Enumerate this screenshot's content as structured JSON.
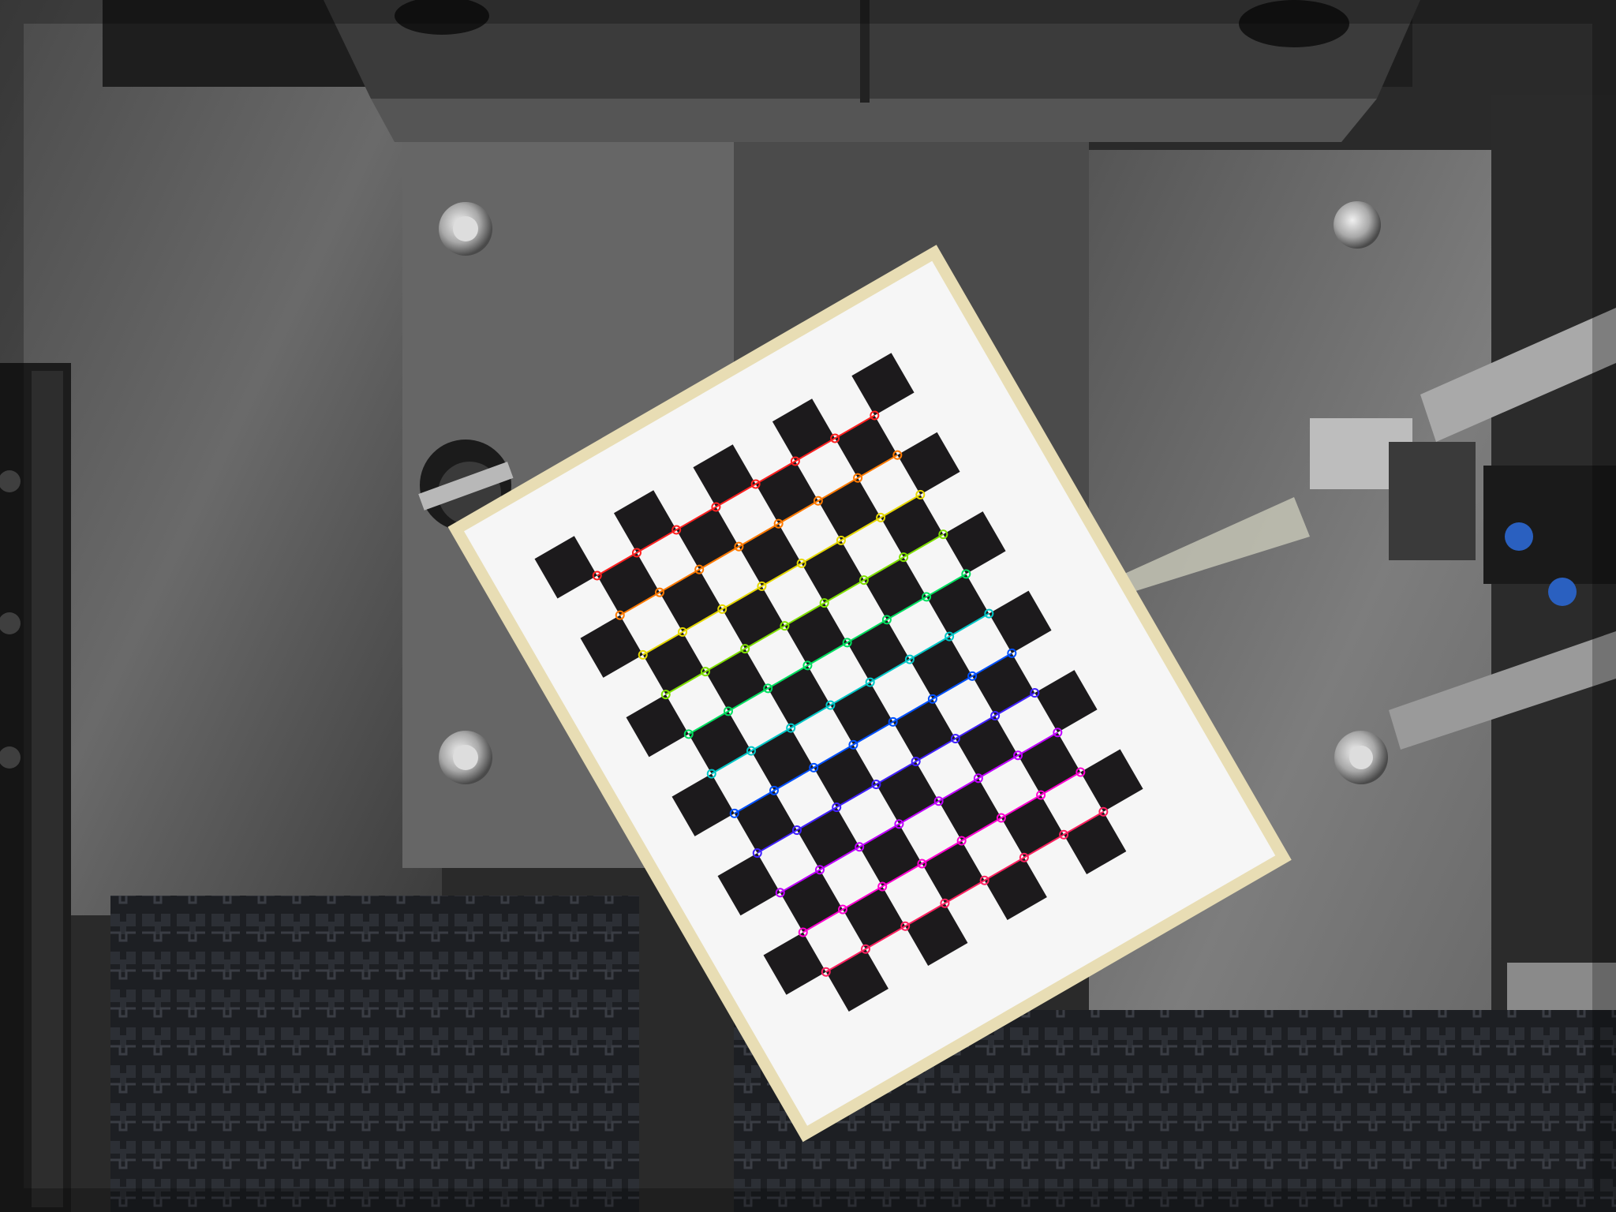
{
  "scene": {
    "kind": "camera calibration capture",
    "subject": "checkerboard-calibration-target",
    "environment": "industrial-machine-bay",
    "features": [
      "overhead-steel-tray",
      "brushed-steel-plate",
      "hex-bolt",
      "clamp-knob",
      "left-conveyor-rail",
      "modular-conveyor-belt",
      "pneumatic-gripper-arm",
      "translucent-rod",
      "raised-steel-plate"
    ]
  },
  "calibration": {
    "pattern": "checkerboard",
    "corner_cols": 8,
    "corner_rows": 11,
    "corner_marker": "small-circle",
    "row_colors": [
      "#ff2020",
      "#ff7a00",
      "#e6d800",
      "#7fe000",
      "#00e060",
      "#00c8c8",
      "#0050ff",
      "#4020ff",
      "#c000ff",
      "#ff00d0",
      "#ff2060"
    ]
  },
  "colors": {
    "steel_dark": "#2f2f2f",
    "steel_mid": "#5a5a5a",
    "steel_light": "#8c8c8c",
    "board_white": "#f4f4f4",
    "board_frame": "#e6dcb4",
    "square_black": "#1c1a1c",
    "belt": "#1e2024"
  }
}
